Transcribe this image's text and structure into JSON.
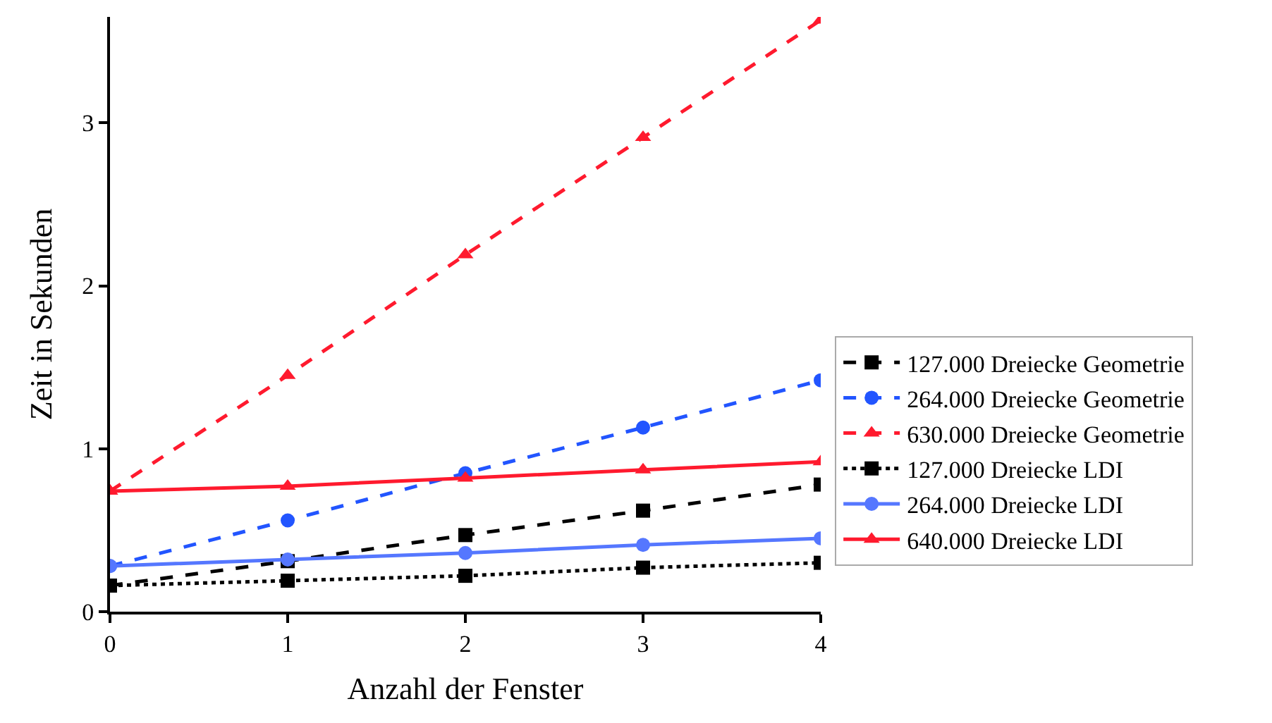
{
  "chart_data": {
    "type": "line",
    "xlabel": "Anzahl der Fenster",
    "ylabel": "Zeit in Sekunden",
    "x": [
      0,
      1,
      2,
      3,
      4
    ],
    "xlim": [
      0,
      4
    ],
    "xticks": [
      0,
      1,
      2,
      3,
      4
    ],
    "ylim": [
      0,
      3.65
    ],
    "yticks": [
      0,
      1,
      2,
      3
    ],
    "legend": "right",
    "series": [
      {
        "name": "127.000 Dreiecke Geometrie",
        "color": "#000000",
        "marker": "square",
        "line_style": "dashed",
        "values": [
          0.16,
          0.31,
          0.47,
          0.62,
          0.78
        ]
      },
      {
        "name": "264.000 Dreiecke Geometrie",
        "color": "#2255ff",
        "marker": "circle",
        "line_style": "dashed",
        "values": [
          0.28,
          0.56,
          0.85,
          1.13,
          1.42
        ]
      },
      {
        "name": "630.000 Dreiecke Geometrie",
        "color": "#ff1a2e",
        "marker": "triangle",
        "line_style": "dashed",
        "values": [
          0.74,
          1.45,
          2.19,
          2.91,
          3.63
        ]
      },
      {
        "name": "127.000 Dreiecke LDI",
        "color": "#000000",
        "marker": "square",
        "line_style": "dotted",
        "values": [
          0.16,
          0.19,
          0.22,
          0.27,
          0.3
        ]
      },
      {
        "name": "264.000 Dreiecke LDI",
        "color": "#5577ff",
        "marker": "circle",
        "line_style": "solid",
        "values": [
          0.28,
          0.32,
          0.36,
          0.41,
          0.45
        ]
      },
      {
        "name": "640.000 Dreiecke LDI",
        "color": "#ff1a2e",
        "marker": "triangle",
        "line_style": "solid",
        "values": [
          0.74,
          0.77,
          0.82,
          0.87,
          0.92
        ]
      }
    ]
  }
}
